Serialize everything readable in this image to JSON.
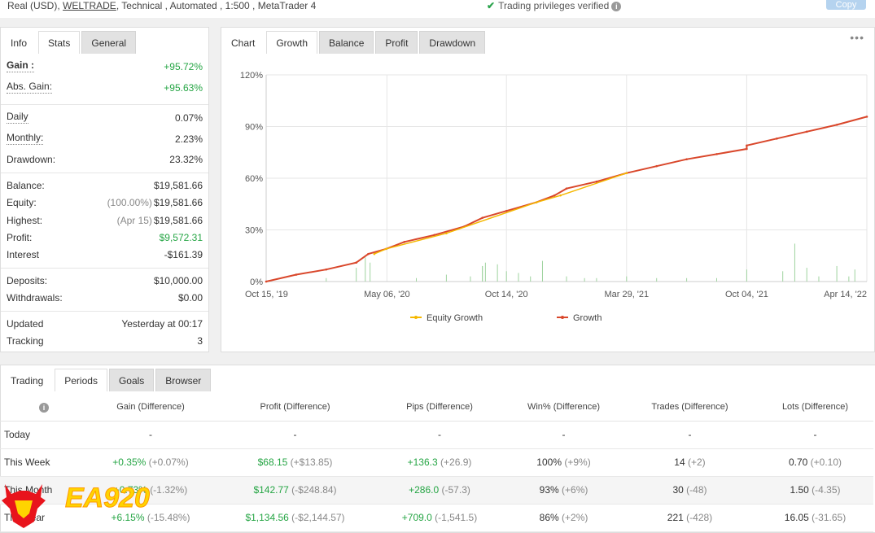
{
  "account": {
    "type": "Real (USD),",
    "broker": "WELTRADE",
    "details": ", Technical , Automated , 1:500 , MetaTrader 4",
    "verified_text": "Trading privileges verified",
    "copy_label": "Copy"
  },
  "stats_panel": {
    "tabs": [
      "Info",
      "Stats",
      "General"
    ],
    "rows": {
      "gain": {
        "label": "Gain :",
        "value": "+95.72%"
      },
      "abs_gain": {
        "label": "Abs. Gain:",
        "value": "+95.63%"
      },
      "daily": {
        "label": "Daily",
        "value": "0.07%"
      },
      "monthly": {
        "label": "Monthly:",
        "value": "2.23%"
      },
      "drawdown": {
        "label": "Drawdown:",
        "value": "23.32%"
      },
      "balance": {
        "label": "Balance:",
        "value": "$19,581.66"
      },
      "equity": {
        "label": "Equity:",
        "note": "(100.00%)",
        "value": "$19,581.66"
      },
      "highest": {
        "label": "Highest:",
        "note": "(Apr 15)",
        "value": "$19,581.66"
      },
      "profit": {
        "label": "Profit:",
        "value": "$9,572.31"
      },
      "interest": {
        "label": "Interest",
        "value": "-$161.39"
      },
      "deposits": {
        "label": "Deposits:",
        "value": "$10,000.00"
      },
      "withdrawals": {
        "label": "Withdrawals:",
        "value": "$0.00"
      },
      "updated": {
        "label": "Updated",
        "value": "Yesterday at 00:17"
      },
      "tracking": {
        "label": "Tracking",
        "value": "3"
      }
    }
  },
  "chart_panel": {
    "tabs": [
      "Chart",
      "Growth",
      "Balance",
      "Profit",
      "Drawdown"
    ],
    "more": "•••"
  },
  "chart_data": {
    "type": "line",
    "y_tick_labels": [
      "120%",
      "90%",
      "60%",
      "30%",
      "0%"
    ],
    "y_ticks": [
      120,
      90,
      60,
      30,
      0
    ],
    "ylim": [
      0,
      120
    ],
    "x_tick_labels": [
      "Oct 15, '19",
      "May 06, '20",
      "Oct 14, '20",
      "Mar 29, '21",
      "Oct 04, '21",
      "Apr 14, '22"
    ],
    "x_ticks": [
      0,
      0.201,
      0.4,
      0.6,
      0.8,
      1.0
    ],
    "legend": "bottom",
    "grid": true,
    "series": [
      {
        "name": "Growth",
        "color": "#d9472b",
        "x": [
          0,
          0.05,
          0.1,
          0.15,
          0.17,
          0.2,
          0.23,
          0.28,
          0.33,
          0.36,
          0.4,
          0.45,
          0.48,
          0.5,
          0.55,
          0.6,
          0.65,
          0.7,
          0.75,
          0.8,
          0.8,
          0.85,
          0.9,
          0.95,
          1.0
        ],
        "y": [
          0,
          4,
          7,
          11,
          16,
          19,
          23,
          27,
          32,
          37,
          41,
          46,
          50,
          54,
          58,
          63,
          67,
          71,
          74,
          77,
          79,
          83,
          87,
          91,
          95.7
        ]
      },
      {
        "name": "Equity Growth",
        "color": "#f5b800",
        "x": [
          0.18,
          0.2,
          0.3,
          0.45,
          0.49,
          0.6
        ],
        "y": [
          16,
          19,
          28,
          46,
          50,
          63
        ]
      }
    ],
    "bars": [
      {
        "x": 0.15,
        "v": 8
      },
      {
        "x": 0.165,
        "v": 14
      },
      {
        "x": 0.173,
        "v": 11
      },
      {
        "x": 0.3,
        "v": 4
      },
      {
        "x": 0.34,
        "v": 3
      },
      {
        "x": 0.36,
        "v": 9
      },
      {
        "x": 0.4,
        "v": 6
      },
      {
        "x": 0.42,
        "v": 5
      },
      {
        "x": 0.36,
        "v": 9
      },
      {
        "x": 0.365,
        "v": 11
      },
      {
        "x": 0.385,
        "v": 10
      },
      {
        "x": 0.46,
        "v": 12
      },
      {
        "x": 0.44,
        "v": 3
      },
      {
        "x": 0.5,
        "v": 3
      },
      {
        "x": 0.53,
        "v": 2
      },
      {
        "x": 0.6,
        "v": 3
      },
      {
        "x": 0.7,
        "v": 2
      },
      {
        "x": 0.8,
        "v": 7
      },
      {
        "x": 0.86,
        "v": 6
      },
      {
        "x": 0.88,
        "v": 22
      },
      {
        "x": 0.9,
        "v": 8
      },
      {
        "x": 0.95,
        "v": 9
      },
      {
        "x": 0.98,
        "v": 7
      },
      {
        "x": 0.25,
        "v": 2
      },
      {
        "x": 0.1,
        "v": 2
      },
      {
        "x": 0.55,
        "v": 2
      },
      {
        "x": 0.65,
        "v": 2
      },
      {
        "x": 0.75,
        "v": 2
      },
      {
        "x": 0.92,
        "v": 3
      },
      {
        "x": 0.97,
        "v": 3
      }
    ]
  },
  "trading_panel": {
    "tabs": [
      "Trading",
      "Periods",
      "Goals",
      "Browser"
    ],
    "columns": [
      "Gain (Difference)",
      "Profit (Difference)",
      "Pips (Difference)",
      "Win% (Difference)",
      "Trades (Difference)",
      "Lots (Difference)"
    ],
    "rows": [
      {
        "name": "Today",
        "gain": "-",
        "gain_diff": "",
        "profit": "-",
        "profit_diff": "",
        "pips": "-",
        "pips_diff": "",
        "win": "-",
        "win_diff": "",
        "trades": "-",
        "trades_diff": "",
        "lots": "-",
        "lots_diff": ""
      },
      {
        "name": "This Week",
        "gain": "+0.35%",
        "gain_diff": "(+0.07%)",
        "profit": "$68.15",
        "profit_diff": "(+$13.85)",
        "pips": "+136.3",
        "pips_diff": "(+26.9)",
        "win": "100%",
        "win_diff": "(+9%)",
        "trades": "14",
        "trades_diff": "(+2)",
        "lots": "0.70",
        "lots_diff": "(+0.10)"
      },
      {
        "name": "This Month",
        "gain": "+0.73%",
        "gain_diff": "(-1.32%)",
        "profit": "$142.77",
        "profit_diff": "(-$248.84)",
        "pips": "+286.0",
        "pips_diff": "(-57.3)",
        "win": "93%",
        "win_diff": "(+6%)",
        "trades": "30",
        "trades_diff": "(-48)",
        "lots": "1.50",
        "lots_diff": "(-4.35)"
      },
      {
        "name": "This Year",
        "gain": "+6.15%",
        "gain_diff": "(-15.48%)",
        "profit": "$1,134.56",
        "profit_diff": "(-$2,144.57)",
        "pips": "+709.0",
        "pips_diff": "(-1,541.5)",
        "win": "86%",
        "win_diff": "(+2%)",
        "trades": "221",
        "trades_diff": "(-428)",
        "lots": "16.05",
        "lots_diff": "(-31.65)"
      }
    ]
  },
  "watermark": {
    "text": "EA920",
    "brand_color": "#e8141c",
    "text_color": "#ffd400"
  }
}
